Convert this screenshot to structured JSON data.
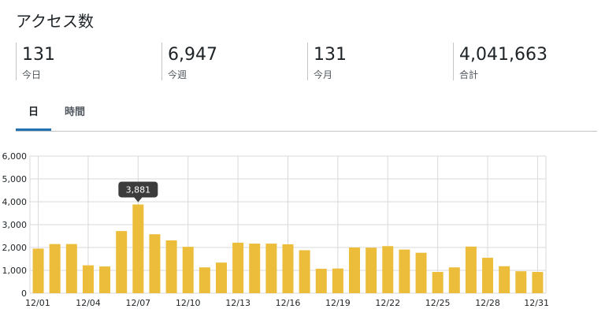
{
  "header": {
    "title": "アクセス数"
  },
  "stats": [
    {
      "value": "131",
      "label": "今日"
    },
    {
      "value": "6,947",
      "label": "今週"
    },
    {
      "value": "131",
      "label": "今月"
    },
    {
      "value": "4,041,663",
      "label": "合計"
    }
  ],
  "tabs": [
    {
      "label": "日",
      "active": true
    },
    {
      "label": "時間",
      "active": false
    }
  ],
  "colors": {
    "bar": "#ecbd3b",
    "grid": "#d9d9d9",
    "tab_active": "#2271b1",
    "tooltip_bg": "#3c3c3c"
  },
  "tooltip": {
    "label": "3,881",
    "index": 6
  },
  "chart_data": {
    "type": "bar",
    "categories": [
      "12/01",
      "12/02",
      "12/03",
      "12/04",
      "12/05",
      "12/06",
      "12/07",
      "12/08",
      "12/09",
      "12/10",
      "12/11",
      "12/12",
      "12/13",
      "12/14",
      "12/15",
      "12/16",
      "12/17",
      "12/18",
      "12/19",
      "12/20",
      "12/21",
      "12/22",
      "12/23",
      "12/24",
      "12/25",
      "12/26",
      "12/27",
      "12/28",
      "12/29",
      "12/30",
      "12/31"
    ],
    "tick_labels": [
      "12/01",
      "12/04",
      "12/07",
      "12/10",
      "12/13",
      "12/16",
      "12/19",
      "12/22",
      "12/25",
      "12/28",
      "12/31"
    ],
    "values": [
      1950,
      2150,
      2150,
      1220,
      1170,
      2720,
      3881,
      2580,
      2310,
      2030,
      1130,
      1340,
      2210,
      2170,
      2170,
      2140,
      1880,
      1070,
      1080,
      2000,
      1990,
      2060,
      1910,
      1770,
      930,
      1130,
      2040,
      1550,
      1180,
      960,
      930
    ],
    "y_ticks": [
      "0",
      "1,000",
      "2,000",
      "3,000",
      "4,000",
      "5,000",
      "6,000"
    ],
    "ylim": [
      0,
      6000
    ],
    "grid": true
  }
}
